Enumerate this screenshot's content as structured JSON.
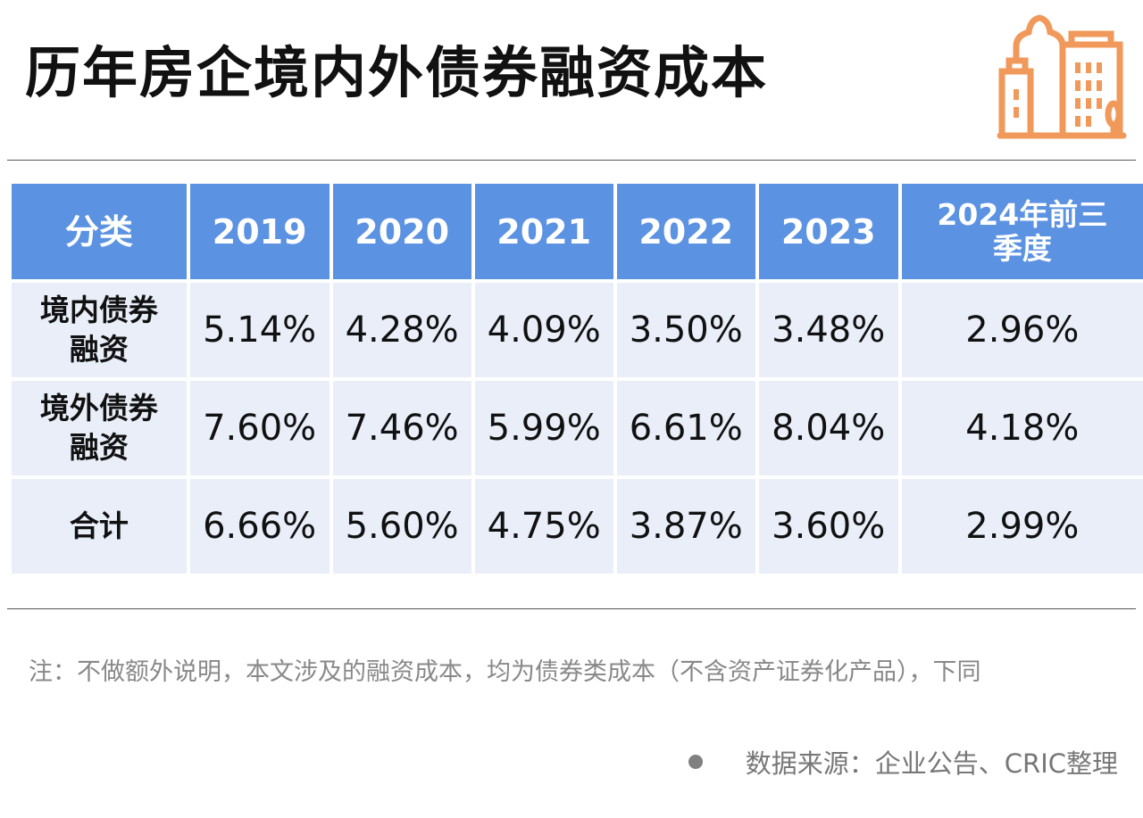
{
  "title": "历年房企境内外债券融资成本",
  "logo_icon": "city-buildings-icon",
  "colors": {
    "header_bg": "#5b92e2",
    "row_bg": "#e9eef9",
    "logo": "#f0995a"
  },
  "chart_data": {
    "type": "table",
    "columns": [
      "分类",
      "2019",
      "2020",
      "2021",
      "2022",
      "2023",
      "2024年前三季度"
    ],
    "rows": [
      {
        "label": "境内债券融资",
        "values": [
          "5.14%",
          "4.28%",
          "4.09%",
          "3.50%",
          "3.48%",
          "2.96%"
        ]
      },
      {
        "label": "境外债券融资",
        "values": [
          "7.60%",
          "7.46%",
          "5.99%",
          "6.61%",
          "8.04%",
          "4.18%"
        ]
      },
      {
        "label": "合计",
        "values": [
          "6.66%",
          "5.60%",
          "4.75%",
          "3.87%",
          "3.60%",
          "2.99%"
        ]
      }
    ]
  },
  "note": "注：不做额外说明，本文涉及的融资成本，均为债券类成本（不含资产证券化产品），下同",
  "source": "数据来源：企业公告、CRIC整理"
}
